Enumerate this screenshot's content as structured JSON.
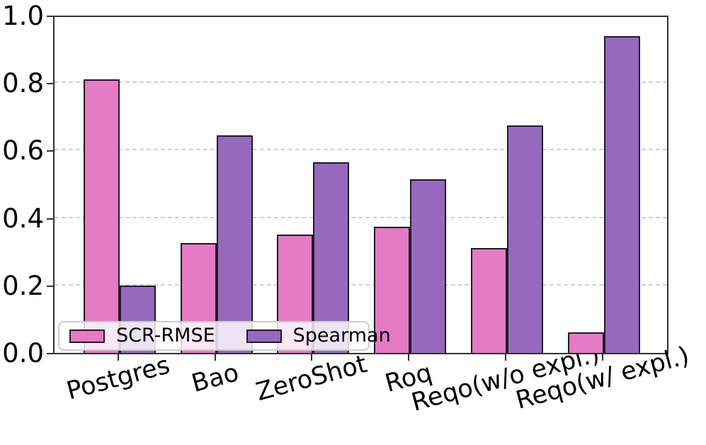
{
  "chart_data": {
    "type": "bar",
    "title": "",
    "xlabel": "",
    "ylabel": "",
    "categories": [
      "Postgres",
      "Bao",
      "ZeroShot",
      "Roq",
      "Reqo(w/o expl.)",
      "Reqo(w/ expl.)"
    ],
    "series": [
      {
        "name": "SCR-RMSE",
        "color": "#e57ac5",
        "values": [
          0.81,
          0.325,
          0.35,
          0.375,
          0.31,
          0.06
        ]
      },
      {
        "name": "Spearman",
        "color": "#9669bf",
        "values": [
          0.2,
          0.645,
          0.565,
          0.515,
          0.675,
          0.94
        ]
      }
    ],
    "ylim": [
      0.0,
      1.0
    ],
    "yticks": [
      0.0,
      0.2,
      0.4,
      0.6,
      0.8,
      1.0
    ],
    "ytick_labels": [
      "0.0",
      "0.2",
      "0.4",
      "0.6",
      "0.8",
      "1.0"
    ],
    "xtick_label_rotation_deg": 15,
    "grid": true,
    "gridline_style": "dashed",
    "legend_position": "lower left",
    "colors": {
      "scr_rmse_fill": "#e57ac5",
      "spearman_fill": "#9669bf",
      "bar_edge": "#1f1b24",
      "gridline": "#cfcfcf",
      "spine": "#333333",
      "text": "#000000",
      "legend_border": "#cccccc"
    }
  }
}
